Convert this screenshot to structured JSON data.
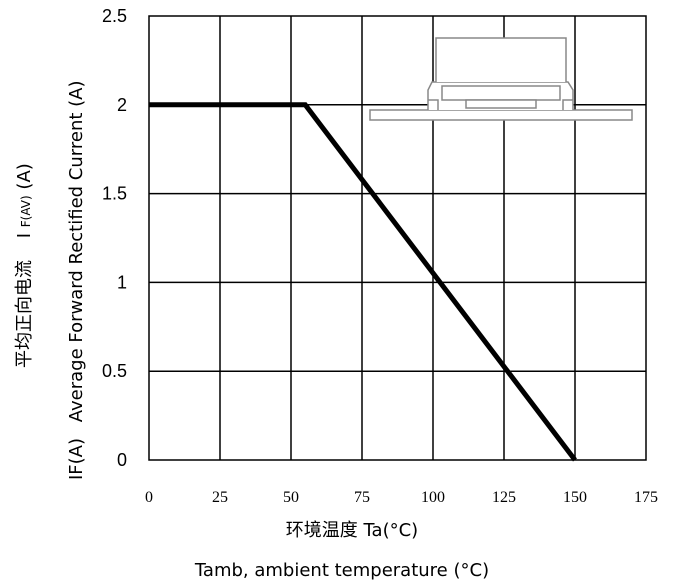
{
  "chart_data": {
    "type": "line",
    "xlabel": "环境温度 Ta(°C)",
    "xlabel2": "Tamb, ambient temperature (°C)",
    "ylabel": {
      "prefix": "IF(A)",
      "english": "Average Forward Rectified Current (A)",
      "chinese": "平均正向电流",
      "symbol_main": "I",
      "symbol_sub": "F(AV)",
      "symbol_unit": " (A)"
    },
    "xlim": [
      0,
      175
    ],
    "ylim": [
      0,
      2.5
    ],
    "xticks": [
      "0",
      "25",
      "50",
      "75",
      "100",
      "125",
      "150",
      "175"
    ],
    "yticks": [
      "0",
      "0.5",
      "1",
      "1.5",
      "2",
      "2.5"
    ],
    "grid": true,
    "series": [
      {
        "x": [
          0,
          55,
          150
        ],
        "y": [
          2,
          2,
          0
        ]
      }
    ]
  },
  "colors": {
    "line": "#000000",
    "grid": "#000000",
    "package_outline": "#888888"
  },
  "icons": {
    "inset": "smd-diode-package-icon"
  }
}
